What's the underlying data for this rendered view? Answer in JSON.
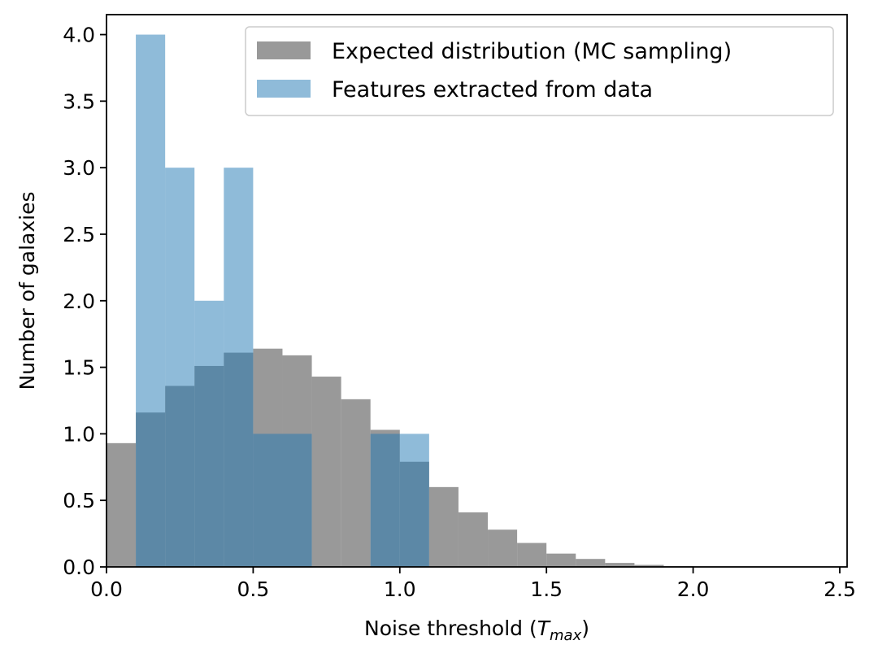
{
  "chart_data": {
    "type": "bar",
    "title": "",
    "xlabel": "Noise threshold (",
    "xlabel_symbol": "T",
    "xlabel_subscript": "max",
    "xlabel_close": ")",
    "ylabel": "Number of galaxies",
    "xlim": [
      0.0,
      2.525
    ],
    "ylim": [
      0.0,
      4.15
    ],
    "xticks": [
      0.0,
      0.5,
      1.0,
      1.5,
      2.0,
      2.5
    ],
    "xtick_labels": [
      "0.0",
      "0.5",
      "1.0",
      "1.5",
      "2.0",
      "2.5"
    ],
    "yticks": [
      0.0,
      0.5,
      1.0,
      1.5,
      2.0,
      2.5,
      3.0,
      3.5,
      4.0
    ],
    "ytick_labels": [
      "0.0",
      "0.5",
      "1.0",
      "1.5",
      "2.0",
      "2.5",
      "3.0",
      "3.5",
      "4.0"
    ],
    "grid": false,
    "legend_position": "upper right",
    "series": [
      {
        "name": "Expected distribution (MC sampling)",
        "color": "#808080",
        "opacity": 0.8,
        "bin_edges": [
          0.0,
          0.1,
          0.2,
          0.3,
          0.4,
          0.5,
          0.6,
          0.7,
          0.8,
          0.9,
          1.0,
          1.1,
          1.2,
          1.3,
          1.4,
          1.5,
          1.6,
          1.7,
          1.8,
          1.9,
          2.0,
          2.1
        ],
        "values": [
          0.93,
          1.16,
          1.36,
          1.51,
          1.61,
          1.64,
          1.59,
          1.43,
          1.26,
          1.03,
          0.79,
          0.6,
          0.41,
          0.28,
          0.18,
          0.1,
          0.06,
          0.03,
          0.015,
          0.005,
          0.002
        ]
      },
      {
        "name": "Features extracted from data",
        "color": "#1f77b4",
        "opacity": 0.5,
        "bin_edges": [
          0.1,
          0.2,
          0.3,
          0.4,
          0.5,
          0.6,
          0.7,
          0.8,
          0.9,
          1.0,
          1.1
        ],
        "values": [
          4,
          3,
          2,
          3,
          1,
          1,
          0,
          0,
          1,
          1
        ]
      }
    ]
  }
}
